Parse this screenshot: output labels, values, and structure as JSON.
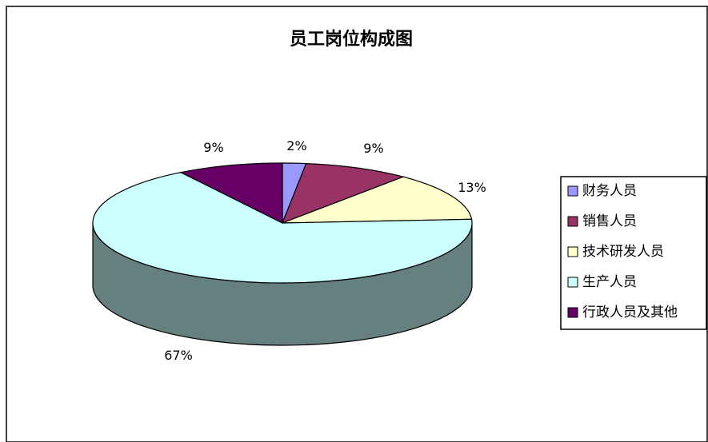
{
  "chart_data": {
    "type": "pie",
    "title": "员工岗位构成图",
    "categories": [
      "财务人员",
      "销售人员",
      "技术研发人员",
      "生产人员",
      "行政人员及其他"
    ],
    "values": [
      2,
      9,
      13,
      67,
      9
    ],
    "value_labels": [
      "2%",
      "9%",
      "13%",
      "67%",
      "9%"
    ],
    "colors": [
      "#9999ff",
      "#993366",
      "#ffffcc",
      "#ccffff",
      "#660066"
    ],
    "legend_position": "right",
    "style": "3d-pie"
  }
}
